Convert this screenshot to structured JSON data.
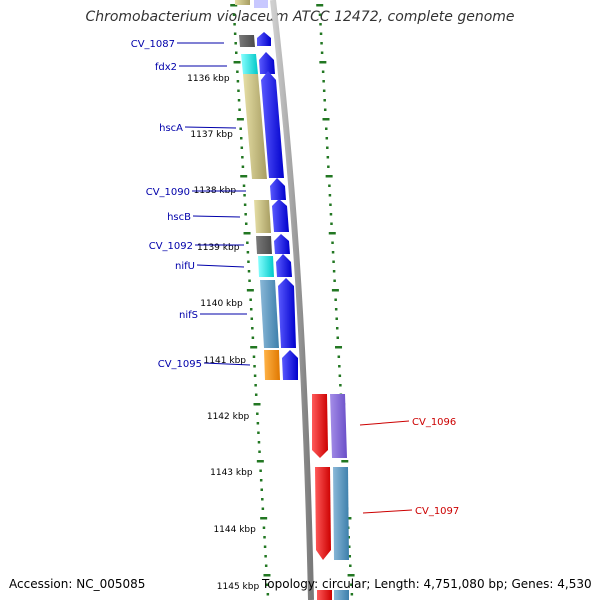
{
  "title": "Chromobacterium violaceum ATCC 12472, complete genome",
  "accession": "Accession: NC_005085",
  "topology": "Topology: circular; Length: 4,751,080 bp; Genes: 4,530",
  "ticks": [
    "1136 kbp",
    "1137 kbp",
    "1138 kbp",
    "1139 kbp",
    "1140 kbp",
    "1141 kbp",
    "1142 kbp",
    "1143 kbp",
    "1144 kbp",
    "1145 kbp"
  ],
  "genes_forward": [
    "CV_1087",
    "fdx2",
    "hscA",
    "CV_1090",
    "hscB",
    "CV_1092",
    "nifU",
    "nifS",
    "CV_1095"
  ],
  "genes_reverse": [
    "CV_1096",
    "CV_1097"
  ],
  "colors": {
    "forward_label": "#0000aa",
    "reverse_label": "#cc0000",
    "forward_arrow": "#0000ee",
    "reverse_arrow": "#ee0000",
    "backbone": "#888888",
    "tick": "#227722"
  }
}
